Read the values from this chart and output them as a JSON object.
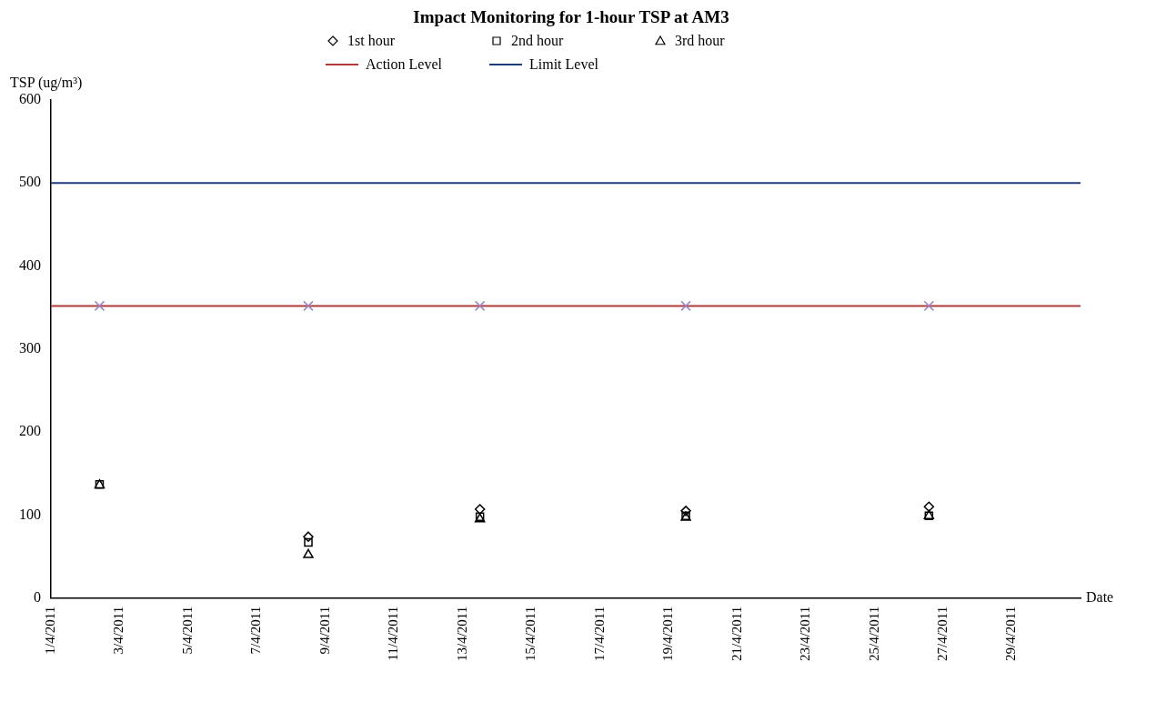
{
  "chart_data": {
    "type": "scatter",
    "title": "Impact Monitoring for 1-hour TSP at AM3",
    "xlabel": "Date",
    "ylabel": "TSP (ug/m³)",
    "x": [
      "2011-04-02T10:00",
      "2011-04-08T12:00",
      "2011-04-13T12:00",
      "2011-04-19T12:00",
      "2011-04-26T14:00"
    ],
    "series": [
      {
        "name": "1st hour",
        "color": "#000000",
        "marker": "diamond",
        "values": [
          null,
          74,
          107,
          105,
          110
        ]
      },
      {
        "name": "2nd hour",
        "color": "#000000",
        "marker": "square",
        "values": [
          137,
          67,
          98,
          99,
          99
        ]
      },
      {
        "name": "3rd hour",
        "color": "#000000",
        "marker": "triangle",
        "values": [
          137,
          53,
          96,
          98,
          100
        ]
      },
      {
        "color": "#9b86c8",
        "marker": "cross",
        "values": [
          352,
          352,
          352,
          352,
          352
        ]
      }
    ],
    "ref_lines": [
      {
        "axis": "y",
        "value": 352,
        "label": "Action Level",
        "color": "#b03a3a"
      },
      {
        "axis": "y",
        "value": 500,
        "label": "Limit Level",
        "color": "#1f3d7a"
      }
    ],
    "xlim": [
      "2011-04-01",
      "2011-05-01"
    ],
    "xticks": [
      {
        "value": "2011-04-01",
        "label": "1/4/2011"
      },
      {
        "value": "2011-04-03",
        "label": "3/4/2011"
      },
      {
        "value": "2011-04-05",
        "label": "5/4/2011"
      },
      {
        "value": "2011-04-07",
        "label": "7/4/2011"
      },
      {
        "value": "2011-04-09",
        "label": "9/4/2011"
      },
      {
        "value": "2011-04-11",
        "label": "11/4/2011"
      },
      {
        "value": "2011-04-13",
        "label": "13/4/2011"
      },
      {
        "value": "2011-04-15",
        "label": "15/4/2011"
      },
      {
        "value": "2011-04-17",
        "label": "17/4/2011"
      },
      {
        "value": "2011-04-19",
        "label": "19/4/2011"
      },
      {
        "value": "2011-04-21",
        "label": "21/4/2011"
      },
      {
        "value": "2011-04-23",
        "label": "23/4/2011"
      },
      {
        "value": "2011-04-25",
        "label": "25/4/2011"
      },
      {
        "value": "2011-04-27",
        "label": "27/4/2011"
      },
      {
        "value": "2011-04-29",
        "label": "29/4/2011"
      }
    ],
    "ylim": [
      0,
      600
    ],
    "yticks": [
      0,
      100,
      200,
      300,
      400,
      500,
      600
    ],
    "grid": false,
    "legend": "top"
  }
}
